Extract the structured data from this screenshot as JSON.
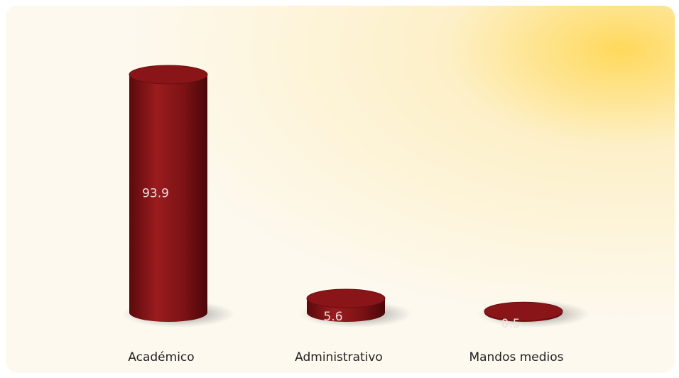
{
  "chart_data": {
    "type": "cylinder",
    "categories": [
      "Académico",
      "Administrativo",
      "Mandos medios"
    ],
    "values": [
      93.9,
      5.6,
      0.5
    ],
    "color": "#8a1518"
  }
}
